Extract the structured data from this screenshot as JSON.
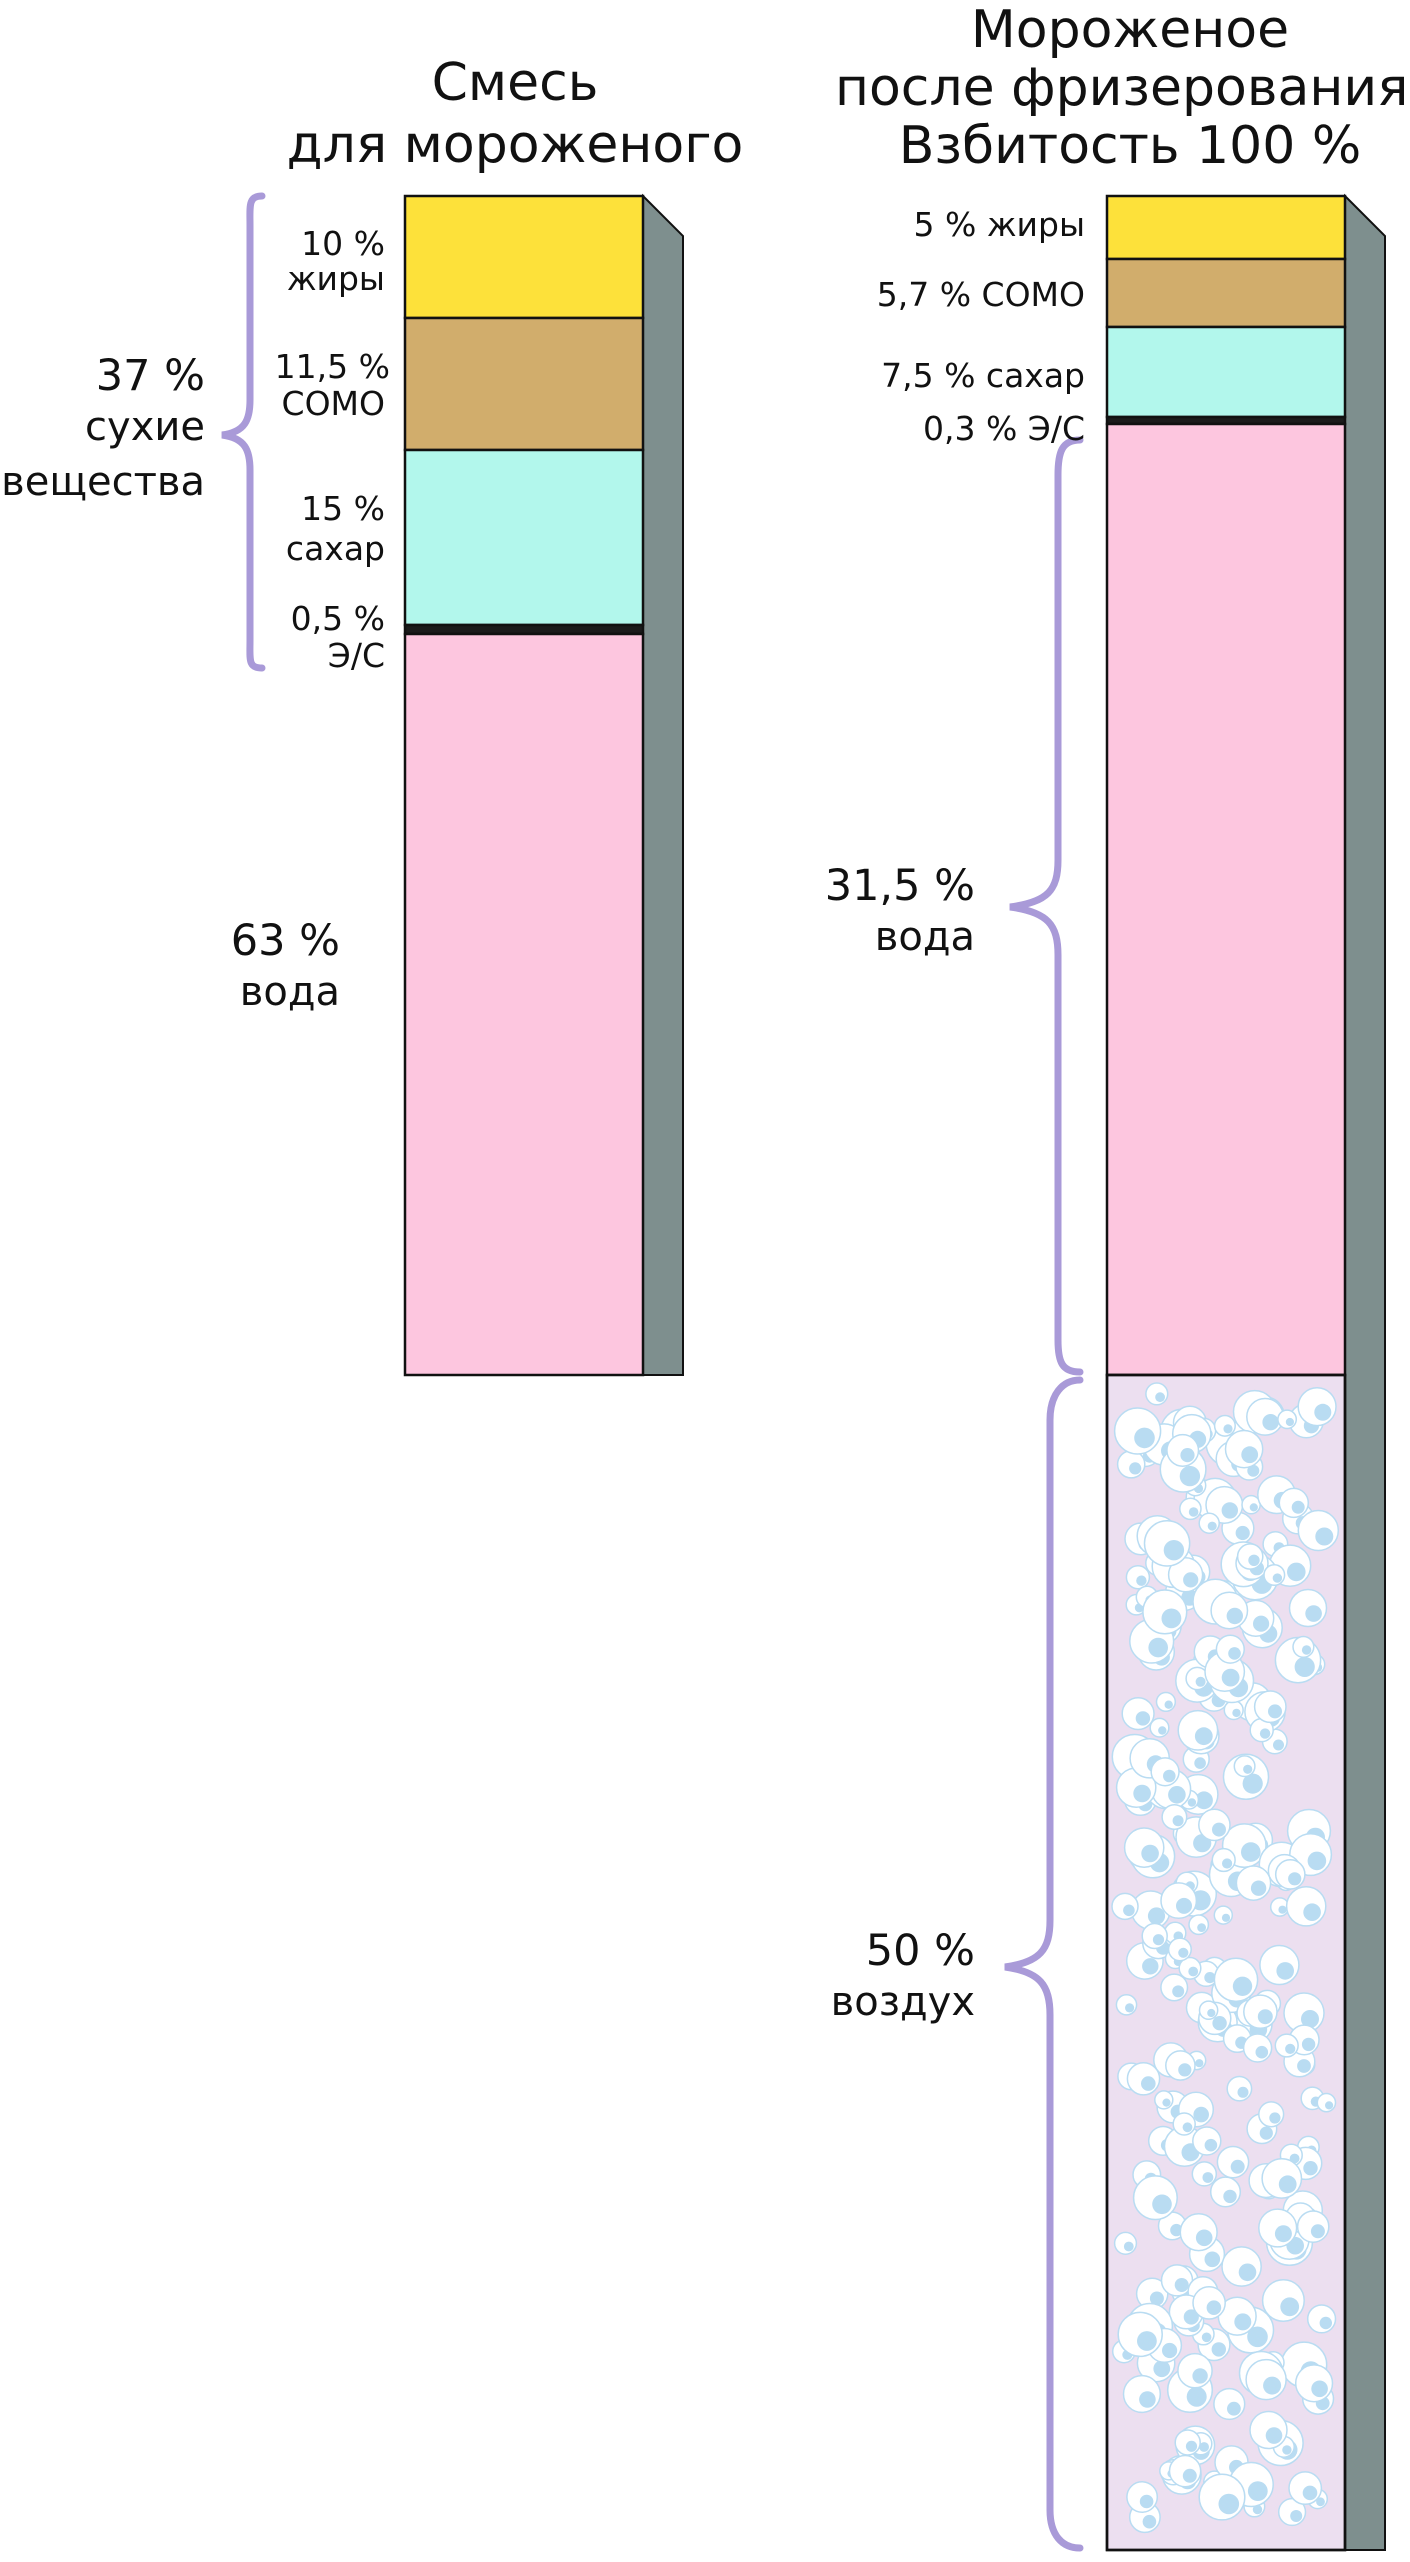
{
  "mix": {
    "title_line1": "Смесь",
    "title_line2": "для мороженого",
    "solids_percent": "37 %",
    "solids_line1": "сухие",
    "solids_line2": "вещества",
    "fat_percent": "10 %",
    "fat_label": "жиры",
    "somo_percent": "11,5 %",
    "somo_label": "СОМО",
    "sugar_percent": "15 %",
    "sugar_label": "сахар",
    "es_percent": "0,5 %",
    "es_label": "Э/С",
    "water_percent": "63 %",
    "water_label": "вода"
  },
  "ice_cream": {
    "title_line1": "Мороженое",
    "title_line2": "после фризерования.",
    "title_line3": "Взбитость 100 %",
    "fat_text": "5 % жиры",
    "somo_text": "5,7 % СОМО",
    "sugar_text": "7,5 % сахар",
    "es_text": "0,3 % Э/С",
    "water_percent": "31,5 %",
    "water_label": "вода",
    "air_percent": "50 %",
    "air_label": "воздух"
  },
  "colors": {
    "fat": "#fde13a",
    "somo": "#d1ad6c",
    "sugar": "#b2f7ec",
    "emulsifier": "#1b1b1b",
    "water": "#fdc6df",
    "air": "#ecdff0",
    "bubble": "#b9dcf2",
    "side": "#7e8f8e",
    "brace": "#a99ad8"
  }
}
